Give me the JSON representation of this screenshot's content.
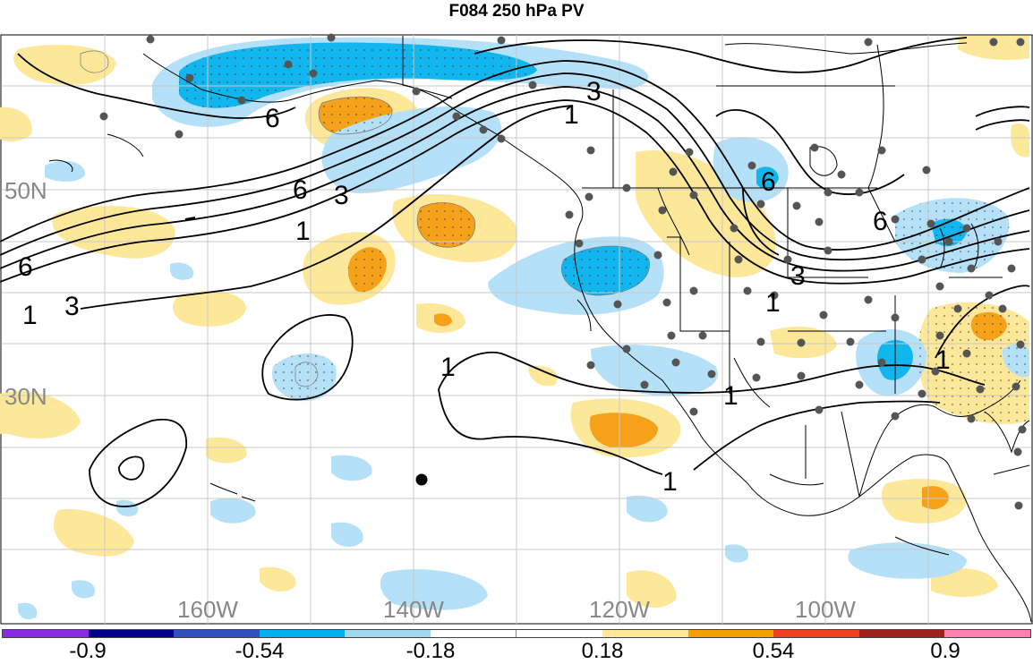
{
  "title": "F084 250 hPa PV",
  "lon_labels": [
    "160W",
    "140W",
    "120W",
    "100W"
  ],
  "lat_labels": [
    "50N",
    "30N"
  ],
  "contour_labels": [
    "1",
    "3",
    "6"
  ],
  "colorbar": {
    "colors": [
      "#8a2be2",
      "#00008b",
      "#3050c0",
      "#00b0f0",
      "#a0d8f0",
      "#ffffff",
      "#ffffff",
      "#ffe898",
      "#f5a000",
      "#f04020",
      "#a02020",
      "#ff80b0"
    ],
    "tick_labels": [
      "-0.9",
      "-0.54",
      "-0.18",
      "0.18",
      "0.54",
      "0.9"
    ]
  },
  "palette": {
    "pos_light": "#fde89a",
    "pos_mid": "#f5a21a",
    "neg_light": "#b4e0f8",
    "neg_mid": "#12b6ee",
    "contour": "#000000",
    "grid": "#c8c8c8",
    "station": "#555555"
  }
}
